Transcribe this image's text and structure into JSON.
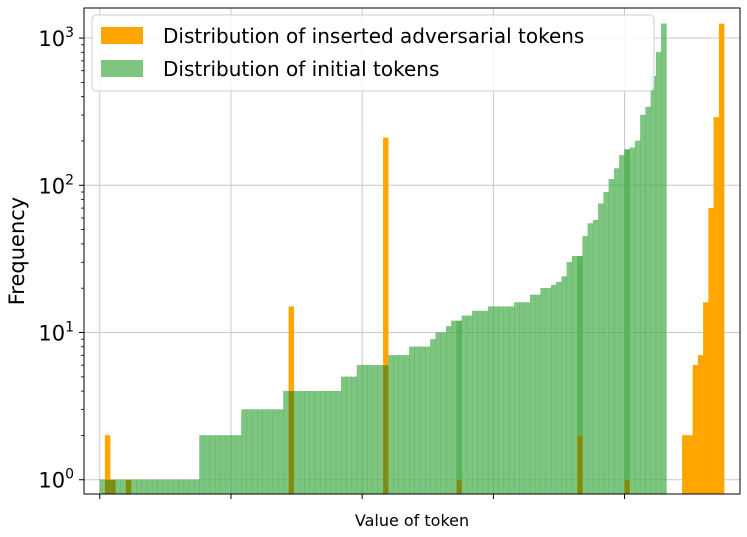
{
  "chart_data": {
    "type": "bar",
    "title": "",
    "xlabel": "Value of token",
    "ylabel": "Frequency",
    "yscale": "log",
    "ylim": [
      0.8,
      1600
    ],
    "xlim": [
      -3,
      122
    ],
    "grid": true,
    "legend_position": "top-left",
    "x_tick_labels_shown": false,
    "y_ticks": [
      {
        "value": 1,
        "base": "10",
        "exp": "0"
      },
      {
        "value": 10,
        "base": "10",
        "exp": "1"
      },
      {
        "value": 100,
        "base": "10",
        "exp": "2"
      },
      {
        "value": 1000,
        "base": "10",
        "exp": "3"
      }
    ],
    "x_grid_values": [
      0,
      25,
      50,
      75,
      100,
      125
    ],
    "series": [
      {
        "name": "Distribution of inserted adversarial tokens",
        "color": "#ffa500",
        "bins": [
          {
            "x": 1,
            "value": 2
          },
          {
            "x": 2,
            "value": 1
          },
          {
            "x": 5,
            "value": 1
          },
          {
            "x": 36,
            "value": 15
          },
          {
            "x": 54,
            "value": 210
          },
          {
            "x": 68,
            "value": 1
          },
          {
            "x": 91,
            "value": 2
          },
          {
            "x": 100,
            "value": 1
          },
          {
            "x": 111,
            "value": 2
          },
          {
            "x": 112,
            "value": 2
          },
          {
            "x": 113,
            "value": 6
          },
          {
            "x": 114,
            "value": 7
          },
          {
            "x": 115,
            "value": 16
          },
          {
            "x": 116,
            "value": 70
          },
          {
            "x": 117,
            "value": 290
          },
          {
            "x": 118,
            "value": 1250
          }
        ]
      },
      {
        "name": "Distribution of initial tokens",
        "color": "#4caf50",
        "bins": [
          {
            "x": 0,
            "value": 1
          },
          {
            "x": 1,
            "value": 1
          },
          {
            "x": 2,
            "value": 1
          },
          {
            "x": 3,
            "value": 1
          },
          {
            "x": 4,
            "value": 1
          },
          {
            "x": 5,
            "value": 1
          },
          {
            "x": 6,
            "value": 1
          },
          {
            "x": 7,
            "value": 1
          },
          {
            "x": 8,
            "value": 1
          },
          {
            "x": 9,
            "value": 1
          },
          {
            "x": 10,
            "value": 1
          },
          {
            "x": 11,
            "value": 1
          },
          {
            "x": 12,
            "value": 1
          },
          {
            "x": 13,
            "value": 1
          },
          {
            "x": 14,
            "value": 1
          },
          {
            "x": 15,
            "value": 1
          },
          {
            "x": 16,
            "value": 1
          },
          {
            "x": 17,
            "value": 1
          },
          {
            "x": 18,
            "value": 1
          },
          {
            "x": 19,
            "value": 2
          },
          {
            "x": 20,
            "value": 2
          },
          {
            "x": 21,
            "value": 2
          },
          {
            "x": 22,
            "value": 2
          },
          {
            "x": 23,
            "value": 2
          },
          {
            "x": 24,
            "value": 2
          },
          {
            "x": 25,
            "value": 2
          },
          {
            "x": 26,
            "value": 2
          },
          {
            "x": 27,
            "value": 3
          },
          {
            "x": 28,
            "value": 3
          },
          {
            "x": 29,
            "value": 3
          },
          {
            "x": 30,
            "value": 3
          },
          {
            "x": 31,
            "value": 3
          },
          {
            "x": 32,
            "value": 3
          },
          {
            "x": 33,
            "value": 3
          },
          {
            "x": 34,
            "value": 3
          },
          {
            "x": 35,
            "value": 4
          },
          {
            "x": 36,
            "value": 4
          },
          {
            "x": 37,
            "value": 4
          },
          {
            "x": 38,
            "value": 4
          },
          {
            "x": 39,
            "value": 4
          },
          {
            "x": 40,
            "value": 4
          },
          {
            "x": 41,
            "value": 4
          },
          {
            "x": 42,
            "value": 4
          },
          {
            "x": 43,
            "value": 4
          },
          {
            "x": 44,
            "value": 4
          },
          {
            "x": 45,
            "value": 4
          },
          {
            "x": 46,
            "value": 5
          },
          {
            "x": 47,
            "value": 5
          },
          {
            "x": 48,
            "value": 5
          },
          {
            "x": 49,
            "value": 6
          },
          {
            "x": 50,
            "value": 6
          },
          {
            "x": 51,
            "value": 6
          },
          {
            "x": 52,
            "value": 6
          },
          {
            "x": 53,
            "value": 6
          },
          {
            "x": 54,
            "value": 6
          },
          {
            "x": 55,
            "value": 7
          },
          {
            "x": 56,
            "value": 7
          },
          {
            "x": 57,
            "value": 7
          },
          {
            "x": 58,
            "value": 7
          },
          {
            "x": 59,
            "value": 8
          },
          {
            "x": 60,
            "value": 8
          },
          {
            "x": 61,
            "value": 8
          },
          {
            "x": 62,
            "value": 8
          },
          {
            "x": 63,
            "value": 9
          },
          {
            "x": 64,
            "value": 10
          },
          {
            "x": 65,
            "value": 10
          },
          {
            "x": 66,
            "value": 11
          },
          {
            "x": 67,
            "value": 12
          },
          {
            "x": 68,
            "value": 12
          },
          {
            "x": 69,
            "value": 13
          },
          {
            "x": 70,
            "value": 13
          },
          {
            "x": 71,
            "value": 14
          },
          {
            "x": 72,
            "value": 14
          },
          {
            "x": 73,
            "value": 14
          },
          {
            "x": 74,
            "value": 15
          },
          {
            "x": 75,
            "value": 15
          },
          {
            "x": 76,
            "value": 15
          },
          {
            "x": 77,
            "value": 15
          },
          {
            "x": 78,
            "value": 15
          },
          {
            "x": 79,
            "value": 16
          },
          {
            "x": 80,
            "value": 16
          },
          {
            "x": 81,
            "value": 16
          },
          {
            "x": 82,
            "value": 18
          },
          {
            "x": 83,
            "value": 18
          },
          {
            "x": 84,
            "value": 20
          },
          {
            "x": 85,
            "value": 20
          },
          {
            "x": 86,
            "value": 21
          },
          {
            "x": 87,
            "value": 22
          },
          {
            "x": 88,
            "value": 24
          },
          {
            "x": 89,
            "value": 30
          },
          {
            "x": 90,
            "value": 33
          },
          {
            "x": 91,
            "value": 33
          },
          {
            "x": 92,
            "value": 45
          },
          {
            "x": 93,
            "value": 55
          },
          {
            "x": 94,
            "value": 58
          },
          {
            "x": 95,
            "value": 75
          },
          {
            "x": 96,
            "value": 90
          },
          {
            "x": 97,
            "value": 110
          },
          {
            "x": 98,
            "value": 130
          },
          {
            "x": 99,
            "value": 160
          },
          {
            "x": 100,
            "value": 175
          },
          {
            "x": 101,
            "value": 180
          },
          {
            "x": 102,
            "value": 200
          },
          {
            "x": 103,
            "value": 300
          },
          {
            "x": 104,
            "value": 340
          },
          {
            "x": 105,
            "value": 550
          },
          {
            "x": 106,
            "value": 800
          },
          {
            "x": 107,
            "value": 1250
          }
        ]
      }
    ]
  }
}
